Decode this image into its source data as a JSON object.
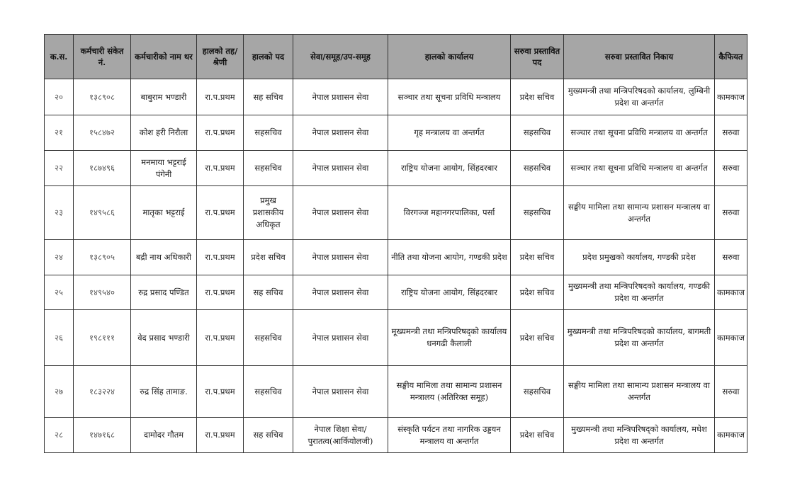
{
  "table": {
    "headers": [
      "क.स.",
      "कर्मचारी संकेत नं.",
      "कर्मचारीको नाम थर",
      "हालको तह/श्रेणी",
      "हालको पद",
      "सेवा/समूह/उप-समूह",
      "हालको कार्यालय",
      "सरुवा प्रस्तावित पद",
      "सरुवा प्रस्तावित निकाय",
      "कैफियत"
    ],
    "rows": [
      [
        "२०",
        "१३८९०८",
        "बाबुराम भण्डारी",
        "रा.प.प्रथम",
        "सह सचिव",
        "नेपाल प्रशासन सेवा",
        "सञ्चार तथा सूचना प्रविधि मन्त्रालय",
        "प्रदेश सचिव",
        "मुख्यमन्त्री तथा मन्त्रिपरिषदको कार्यालय, लुम्बिनी प्रदेश वा अन्तर्गत",
        "कामकाज"
      ],
      [
        "२१",
        "१५८४७२",
        "कोश हरी निरौला",
        "रा.प.प्रथम",
        "सहसचिव",
        "नेपाल प्रशासन सेवा",
        "गृह मन्त्रालय वा अन्तर्गत",
        "सहसचिव",
        "सञ्चार तथा सूचना प्रविधि मन्त्रालय वा अन्तर्गत",
        "सरुवा"
      ],
      [
        "२२",
        "१८७४९६",
        "मनमाया भट्टराई पंगेनी",
        "रा.प.प्रथम",
        "सहसचिव",
        "नेपाल प्रशासन सेवा",
        "राष्ट्रिय योजना आयोग, सिंहदरबार",
        "सहसचिव",
        "सञ्चार तथा सूचना प्रविधि मन्त्रालय वा अन्तर्गत",
        "सरुवा"
      ],
      [
        "२३",
        "१४९५८६",
        "मातृका भट्टराई",
        "रा.प.प्रथम",
        "प्रमुख प्रशासकीय अधिकृत",
        "नेपाल प्रशासन सेवा",
        "विरगञ्ज महानगरपालिका, पर्सा",
        "सहसचिव",
        "सङ्घीय मामिला तथा सामान्य प्रशासन मन्त्रालय वा अन्तर्गत",
        "सरुवा"
      ],
      [
        "२४",
        "१३८९०५",
        "बद्री नाथ अधिकारी",
        "रा.प.प्रथम",
        "प्रदेश सचिव",
        "नेपाल प्रशासन सेवा",
        "नीति तथा योजना आयोग, गण्डकी प्रदेश",
        "प्रदेश सचिव",
        "प्रदेश प्रमुखको कार्यालय, गण्डकी प्रदेश",
        "सरुवा"
      ],
      [
        "२५",
        "१४९५४०",
        "रुद्र प्रसाद पण्डित",
        "रा.प.प्रथम",
        "सह सचिव",
        "नेपाल प्रशासन सेवा",
        "राष्ट्रिय योजना आयोग, सिंहदरबार",
        "प्रदेश सचिव",
        "मुख्यमन्त्री तथा मन्त्रिपरिषदको कार्यालय, गण्डकी प्रदेश वा अन्तर्गत",
        "कामकाज"
      ],
      [
        "२६",
        "१९८१११",
        "वेद प्रसाद भण्डारी",
        "रा.प.प्रथम",
        "सहसचिव",
        "नेपाल प्रशासन सेवा",
        "मूख्यमन्त्री तथा मन्त्रिपरिषद्को कार्यालय धनगढी कैलाली",
        "प्रदेश सचिव",
        "मुख्यमन्त्री तथा मन्त्रिपरिषदको कार्यालय, बागमती प्रदेश वा अन्तर्गत",
        "कामकाज"
      ],
      [
        "२७",
        "१८३२२४",
        "रुद्र सिंह तामाङ.",
        "रा.प.प्रथम",
        "सहसचिव",
        "नेपाल प्रशासन सेवा",
        "सङ्घीय मामिला तथा सामान्य प्रशासन मन्त्रालय (अतिरिक्त समूह)",
        "सहसचिव",
        "सङ्घीय मामिला तथा सामान्य प्रशासन मन्त्रालय वा अन्तर्गत",
        "सरुवा"
      ],
      [
        "२८",
        "१४७१६८",
        "दामोदर गौतम",
        "रा.प.प्रथम",
        "सह सचिव",
        "नेपाल शिक्षा सेवा/ पुरातत्व(आर्कियोलजी)",
        "संस्कृति पर्यटन तथा नागरिक उड्डयन मन्त्रालय वा अन्तर्गत",
        "प्रदेश सचिव",
        "मुख्यमन्त्री तथा मन्त्रिपरिषद्को कार्यालय, मधेश प्रदेश वा अन्तर्गत",
        "कामकाज"
      ]
    ]
  }
}
